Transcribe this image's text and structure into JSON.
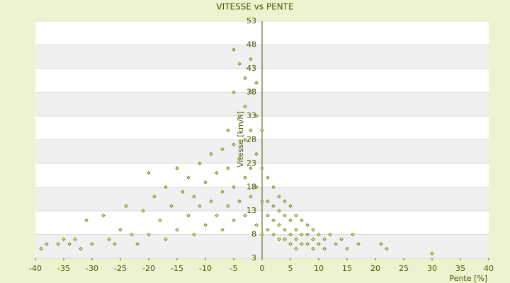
{
  "chart_data": {
    "type": "scatter",
    "title": "VITESSE vs PENTE",
    "x_label": "Pente [%]",
    "y_label": "Vitesse [km/h]",
    "xlim": [
      -40,
      40
    ],
    "xticks": [
      -40,
      -35,
      -30,
      -25,
      -20,
      -15,
      -10,
      -5,
      0,
      5,
      10,
      15,
      20,
      25,
      30,
      35,
      40
    ],
    "ylim": [
      3,
      53
    ],
    "yticks": [
      3,
      8,
      13,
      18,
      23,
      28,
      33,
      38,
      43,
      48,
      53
    ],
    "grid": true,
    "color": "#5f6e00",
    "x": [
      -39,
      -38,
      -36,
      -35,
      -34,
      -33,
      -32,
      -31,
      -30,
      -28,
      -27,
      -26,
      -25,
      -24,
      -23,
      -22,
      -21,
      -20,
      -20,
      -19,
      -18,
      -17,
      -17,
      -16,
      -15,
      -15,
      -14,
      -13,
      -13,
      -12,
      -12,
      -11,
      -11,
      -10,
      -10,
      -9,
      -9,
      -8,
      -8,
      -7,
      -7,
      -7,
      -6,
      -6,
      -6,
      -5,
      -5,
      -5,
      -5,
      -5,
      -4,
      -4,
      -4,
      -4,
      -3,
      -3,
      -3,
      -3,
      -3,
      -2,
      -2,
      -2,
      -2,
      -2,
      -1,
      -1,
      -1,
      -1,
      -1,
      0,
      0,
      0,
      0,
      1,
      1,
      1,
      1,
      2,
      2,
      2,
      2,
      3,
      3,
      3,
      3,
      4,
      4,
      4,
      4,
      5,
      5,
      5,
      5,
      6,
      6,
      6,
      6,
      7,
      7,
      7,
      8,
      8,
      8,
      9,
      9,
      9,
      10,
      10,
      11,
      11,
      12,
      13,
      14,
      15,
      16,
      17,
      21,
      22,
      30
    ],
    "values": [
      5,
      6,
      6,
      7,
      6,
      7,
      5,
      11,
      6,
      12,
      7,
      6,
      9,
      14,
      8,
      6,
      13,
      21,
      8,
      16,
      11,
      7,
      18,
      14,
      9,
      22,
      17,
      12,
      20,
      8,
      16,
      23,
      14,
      19,
      10,
      25,
      15,
      21,
      12,
      26,
      17,
      9,
      30,
      22,
      14,
      47,
      38,
      27,
      18,
      11,
      44,
      33,
      24,
      15,
      41,
      35,
      28,
      20,
      12,
      45,
      38,
      30,
      22,
      16,
      40,
      33,
      25,
      18,
      10,
      30,
      22,
      15,
      8,
      20,
      15,
      12,
      9,
      18,
      14,
      11,
      8,
      16,
      13,
      10,
      7,
      15,
      12,
      9,
      7,
      14,
      11,
      8,
      6,
      12,
      9,
      7,
      5,
      11,
      8,
      6,
      10,
      8,
      6,
      9,
      7,
      5,
      8,
      6,
      7,
      5,
      8,
      6,
      7,
      5,
      8,
      6,
      6,
      5,
      4
    ]
  }
}
